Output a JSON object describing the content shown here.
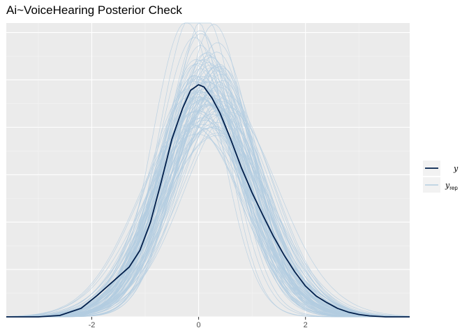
{
  "chart_data": {
    "type": "line",
    "title": "Ai~VoiceHearing Posterior Check",
    "xlabel": "",
    "ylabel": "",
    "xlim": [
      -3.6,
      3.95
    ],
    "ylim": [
      0,
      0.62
    ],
    "x_ticks": [
      -2,
      0,
      2
    ],
    "x_tick_labels": [
      "-2",
      "0",
      "2"
    ],
    "y_tick_labels_shown": false,
    "grid": true,
    "legend_position": "right",
    "series": [
      {
        "name": "y",
        "role": "observed density",
        "color": "#011f4b",
        "x": [
          -3.6,
          -3.0,
          -2.6,
          -2.2,
          -1.9,
          -1.6,
          -1.3,
          -1.1,
          -0.9,
          -0.7,
          -0.5,
          -0.3,
          -0.15,
          0.0,
          0.1,
          0.25,
          0.4,
          0.6,
          0.8,
          1.0,
          1.2,
          1.4,
          1.6,
          1.8,
          2.0,
          2.2,
          2.4,
          2.6,
          2.8,
          3.0,
          3.2,
          3.5,
          3.95
        ],
        "values": [
          0.0,
          0.0,
          0.003,
          0.018,
          0.045,
          0.075,
          0.105,
          0.14,
          0.2,
          0.285,
          0.375,
          0.44,
          0.478,
          0.49,
          0.485,
          0.462,
          0.43,
          0.375,
          0.315,
          0.262,
          0.215,
          0.17,
          0.13,
          0.095,
          0.065,
          0.044,
          0.03,
          0.018,
          0.01,
          0.005,
          0.002,
          0.0,
          0.0
        ]
      },
      {
        "name": "y_rep",
        "legend_label": "y",
        "legend_subscript": "rep",
        "role": "posterior predictive replicates",
        "color": "#b3cde0",
        "replicate_count": 100,
        "approx_mean_range": [
          -0.2,
          0.55
        ],
        "approx_sd_range": [
          0.55,
          1.05
        ],
        "approx_peak_range": [
          0.3,
          0.6
        ]
      }
    ]
  }
}
